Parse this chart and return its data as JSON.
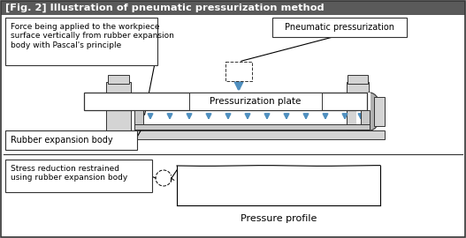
{
  "title": "[Fig. 2] Illustration of pneumatic pressurization method",
  "title_bg": "#5a5a5a",
  "title_fg": "#ffffff",
  "bg_color": "#ffffff",
  "border_color": "#333333",
  "blue_color": "#4f8fbf",
  "light_gray": "#d4d4d4",
  "medium_gray": "#b0b0b0",
  "rubber_gray": "#c8c8c8",
  "label_force": "Force being applied to the workpiece\nsurface vertically from rubber expansion\nbody with Pascal's principle",
  "label_pneumatic": "Pneumatic pressurization",
  "label_press_plate": "Pressurization plate",
  "label_rubber": "Rubber expansion body",
  "label_stress": "Stress reduction restrained\nusing rubber expansion body",
  "label_pressure_profile": "Pressure profile"
}
